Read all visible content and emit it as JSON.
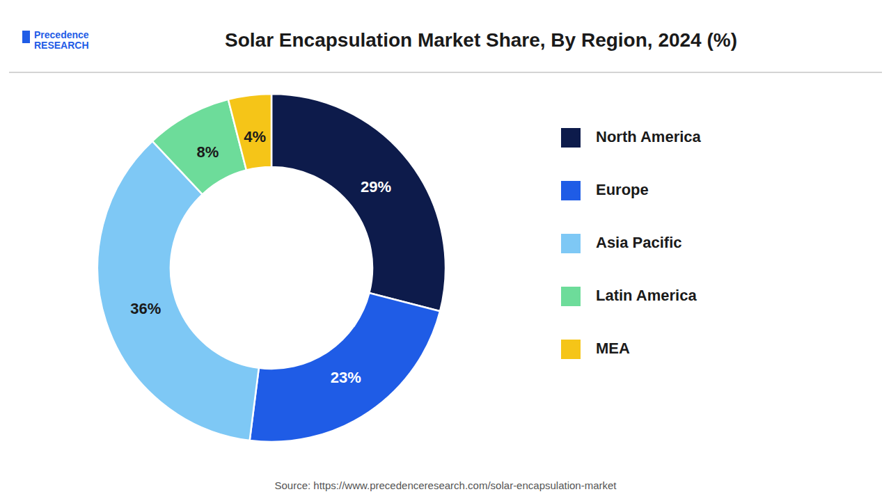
{
  "chart_data": {
    "type": "donut",
    "title": "Solar Encapsulation Market Share, By Region, 2024 (%)",
    "categories": [
      "North America",
      "Europe",
      "Asia Pacific",
      "Latin America",
      "MEA"
    ],
    "values": [
      29,
      23,
      36,
      8,
      4
    ],
    "value_labels": [
      "29%",
      "23%",
      "36%",
      "8%",
      "4%"
    ],
    "colors": [
      "#0d1b4b",
      "#1f5ce6",
      "#7ec8f5",
      "#6ddc9a",
      "#f5c518"
    ],
    "data_labels": true,
    "legend": "right",
    "annotations": [
      "Source: https://www.precedenceresearch.com/solar-encapsulation-market",
      "Precedence",
      "RESEARCH"
    ]
  }
}
